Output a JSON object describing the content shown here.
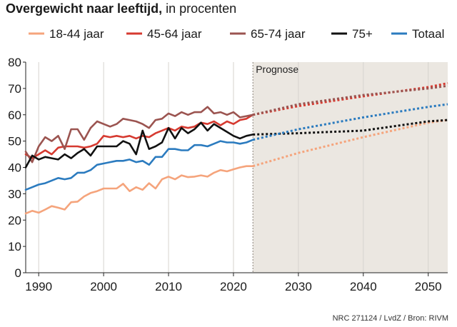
{
  "title": {
    "bold": "Overgewicht naar leeftijd,",
    "rest": " in procenten"
  },
  "source": "NRC 271124 / LvdZ / Bron: RIVM",
  "chart_data": {
    "type": "line",
    "title": "Overgewicht naar leeftijd, in procenten",
    "xlabel": "",
    "ylabel": "",
    "xlim": [
      1988,
      2053
    ],
    "ylim": [
      0,
      80
    ],
    "x_ticks": [
      1990,
      2000,
      2010,
      2020,
      2030,
      2040,
      2050
    ],
    "y_ticks": [
      0,
      10,
      20,
      30,
      40,
      50,
      60,
      70,
      80
    ],
    "grid": "vertical",
    "legend": "top",
    "forecast": {
      "label": "Prognose",
      "from": 2023,
      "to": 2053,
      "shade": "#ebe7e1"
    },
    "series": [
      {
        "name": "18-44 jaar",
        "color": "#f5a47c",
        "x": [
          1988,
          1989,
          1990,
          1991,
          1992,
          1993,
          1994,
          1995,
          1996,
          1997,
          1998,
          1999,
          2000,
          2001,
          2002,
          2003,
          2004,
          2005,
          2006,
          2007,
          2008,
          2009,
          2010,
          2011,
          2012,
          2013,
          2014,
          2015,
          2016,
          2017,
          2018,
          2019,
          2020,
          2021,
          2022,
          2023
        ],
        "values": [
          22.5,
          23.5,
          22.8,
          24.0,
          25.3,
          24.7,
          24.0,
          26.8,
          27.0,
          29.0,
          30.3,
          31.0,
          32.0,
          32.0,
          32.0,
          33.8,
          31.0,
          32.5,
          31.5,
          34.0,
          32.0,
          35.5,
          36.5,
          35.5,
          37.0,
          36.3,
          36.5,
          37.0,
          36.5,
          38.0,
          39.0,
          38.5,
          39.3,
          40.0,
          40.5,
          40.5
        ],
        "forecast": {
          "x": [
            2023,
            2030,
            2040,
            2050,
            2053
          ],
          "values": [
            40.5,
            45.5,
            51.5,
            57.0,
            58.0
          ]
        }
      },
      {
        "name": "45-64 jaar",
        "color": "#d63a30",
        "x": [
          1988,
          1989,
          1990,
          1991,
          1992,
          1993,
          1994,
          1995,
          1996,
          1997,
          1998,
          1999,
          2000,
          2001,
          2002,
          2003,
          2004,
          2005,
          2006,
          2007,
          2008,
          2009,
          2010,
          2011,
          2012,
          2013,
          2014,
          2015,
          2016,
          2017,
          2018,
          2019,
          2020,
          2021,
          2022,
          2023
        ],
        "values": [
          45.0,
          43.5,
          45.0,
          46.5,
          45.0,
          47.5,
          48.0,
          48.0,
          48.0,
          47.5,
          48.0,
          49.0,
          52.0,
          51.5,
          52.0,
          51.5,
          52.0,
          51.0,
          52.0,
          51.5,
          53.0,
          54.0,
          55.0,
          54.0,
          55.5,
          55.0,
          55.5,
          57.0,
          56.5,
          57.5,
          56.0,
          57.5,
          56.5,
          58.0,
          58.5,
          60.0
        ],
        "forecast": {
          "x": [
            2023,
            2030,
            2040,
            2050,
            2053
          ],
          "values": [
            60.0,
            63.3,
            67.0,
            70.5,
            72.0
          ]
        }
      },
      {
        "name": "65-74 jaar",
        "color": "#9b5450",
        "x": [
          1988,
          1989,
          1990,
          1991,
          1992,
          1993,
          1994,
          1995,
          1996,
          1997,
          1998,
          1999,
          2000,
          2001,
          2002,
          2003,
          2004,
          2005,
          2006,
          2007,
          2008,
          2009,
          2010,
          2011,
          2012,
          2013,
          2014,
          2015,
          2016,
          2017,
          2018,
          2019,
          2020,
          2021,
          2022,
          2023
        ],
        "values": [
          46.0,
          42.0,
          48.0,
          51.5,
          50.0,
          52.0,
          47.0,
          54.5,
          54.5,
          50.5,
          55.0,
          57.5,
          56.5,
          55.5,
          56.5,
          58.5,
          58.0,
          57.5,
          56.5,
          55.0,
          58.0,
          58.5,
          60.5,
          59.5,
          61.0,
          60.0,
          61.0,
          61.0,
          63.0,
          60.5,
          61.0,
          60.0,
          61.0,
          59.0,
          59.5,
          60.0
        ],
        "forecast": {
          "x": [
            2023,
            2030,
            2040,
            2050,
            2053
          ],
          "values": [
            60.0,
            64.0,
            67.5,
            70.0,
            71.0
          ]
        }
      },
      {
        "name": "75+",
        "color": "#111111",
        "x": [
          1988,
          1989,
          1990,
          1991,
          1992,
          1993,
          1994,
          1995,
          1996,
          1997,
          1998,
          1999,
          2000,
          2001,
          2002,
          2003,
          2004,
          2005,
          2006,
          2007,
          2008,
          2009,
          2010,
          2011,
          2012,
          2013,
          2014,
          2015,
          2016,
          2017,
          2018,
          2019,
          2020,
          2021,
          2022,
          2023
        ],
        "values": [
          40.0,
          44.5,
          43.0,
          44.0,
          43.5,
          43.0,
          45.0,
          43.5,
          45.5,
          47.0,
          44.5,
          48.0,
          48.0,
          48.0,
          48.0,
          50.0,
          49.0,
          45.0,
          54.0,
          47.0,
          48.0,
          49.5,
          55.0,
          51.0,
          55.0,
          53.0,
          54.5,
          57.0,
          54.0,
          56.5,
          55.0,
          53.5,
          52.0,
          51.0,
          52.0,
          52.5
        ],
        "forecast": {
          "x": [
            2023,
            2030,
            2040,
            2050,
            2053
          ],
          "values": [
            52.5,
            53.0,
            54.0,
            57.5,
            58.0
          ]
        }
      },
      {
        "name": "Totaal",
        "color": "#2b7bbf",
        "x": [
          1988,
          1989,
          1990,
          1991,
          1992,
          1993,
          1994,
          1995,
          1996,
          1997,
          1998,
          1999,
          2000,
          2001,
          2002,
          2003,
          2004,
          2005,
          2006,
          2007,
          2008,
          2009,
          2010,
          2011,
          2012,
          2013,
          2014,
          2015,
          2016,
          2017,
          2018,
          2019,
          2020,
          2021,
          2022,
          2023
        ],
        "values": [
          31.5,
          32.5,
          33.5,
          34.0,
          35.0,
          36.0,
          35.5,
          36.0,
          38.0,
          38.0,
          39.0,
          41.0,
          41.5,
          42.0,
          42.5,
          42.5,
          43.0,
          42.0,
          42.5,
          41.0,
          44.0,
          44.0,
          47.0,
          47.0,
          46.5,
          46.5,
          48.5,
          48.5,
          48.0,
          49.0,
          50.0,
          49.5,
          49.5,
          49.0,
          49.5,
          50.5
        ],
        "forecast": {
          "x": [
            2023,
            2030,
            2040,
            2050,
            2053
          ],
          "values": [
            50.5,
            54.5,
            59.0,
            63.0,
            64.0
          ]
        }
      }
    ]
  }
}
